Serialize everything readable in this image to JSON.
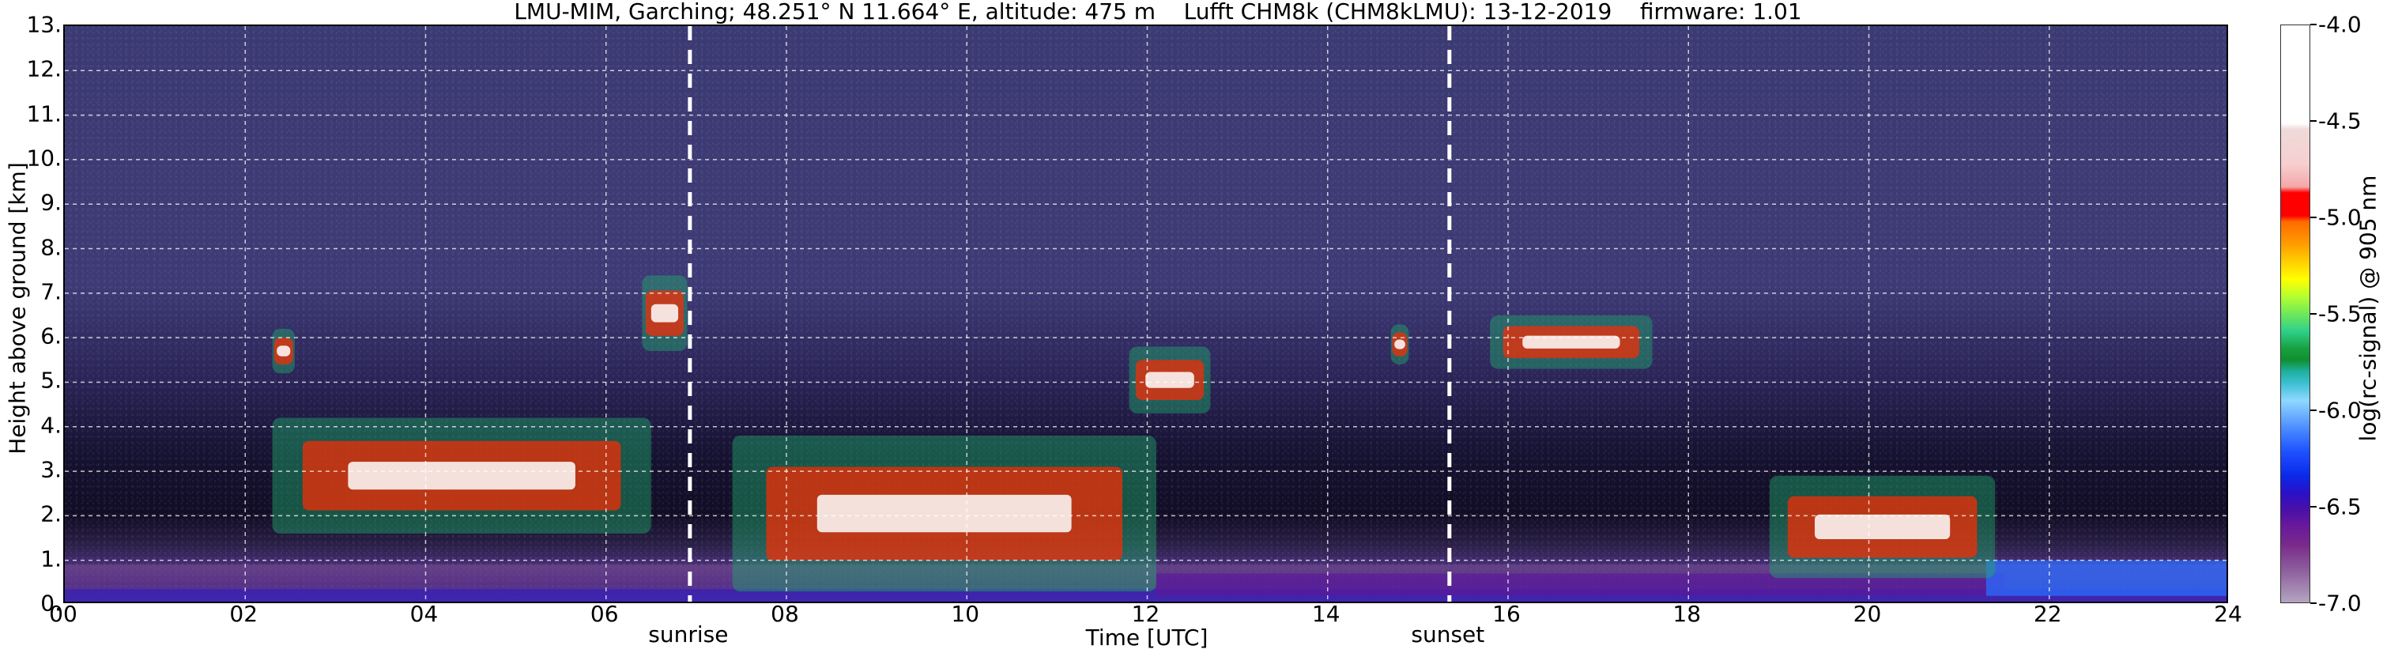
{
  "chart_data": {
    "type": "heatmap",
    "title": "LMU-MIM, Garching; 48.251° N 11.664° E, altitude: 475 m    Lufft CHM8k (CHM8kLMU): 13-12-2019    firmware: 1.01",
    "xlabel": "Time [UTC]",
    "ylabel": "Height above ground [km]",
    "xlim": [
      0,
      24
    ],
    "ylim": [
      0,
      13
    ],
    "x_ticks": [
      "00",
      "02",
      "04",
      "06",
      "08",
      "10",
      "12",
      "14",
      "16",
      "18",
      "20",
      "22",
      "24"
    ],
    "y_ticks": [
      "0.",
      "1.",
      "2.",
      "3.",
      "4.",
      "5.",
      "6.",
      "7.",
      "8.",
      "9.",
      "10.",
      "11.",
      "12.",
      "13."
    ],
    "grid": true,
    "annotations": [
      {
        "label": "sunrise",
        "x": 6.93
      },
      {
        "label": "sunset",
        "x": 15.35
      }
    ],
    "colorbar": {
      "label": "log(rc-signal) @ 905 nm",
      "range": [
        -7.0,
        -4.0
      ],
      "ticks": [
        "-4.0",
        "-4.5",
        "-5.0",
        "-5.5",
        "-6.0",
        "-6.5",
        "-7.0"
      ],
      "colors": [
        "#ffffff",
        "#f4a7a7",
        "#ff0000",
        "#ff9e00",
        "#ffff00",
        "#6fe85a",
        "#18a040",
        "#8fd8ff",
        "#3c7bff",
        "#0a2aea",
        "#4a10a8",
        "#7a2a8a",
        "#b4a4c0"
      ]
    },
    "cloud_layers": [
      {
        "x": [
          2.3,
          6.5
        ],
        "y": [
          1.6,
          4.2
        ]
      },
      {
        "x": [
          2.3,
          2.55
        ],
        "y": [
          5.2,
          6.2
        ]
      },
      {
        "x": [
          6.4,
          6.9
        ],
        "y": [
          5.7,
          7.4
        ]
      },
      {
        "x": [
          7.4,
          12.1
        ],
        "y": [
          0.3,
          3.8
        ]
      },
      {
        "x": [
          11.8,
          12.7
        ],
        "y": [
          4.3,
          5.8
        ]
      },
      {
        "x": [
          14.7,
          14.9
        ],
        "y": [
          5.4,
          6.3
        ]
      },
      {
        "x": [
          15.8,
          17.6
        ],
        "y": [
          5.3,
          6.5
        ]
      },
      {
        "x": [
          18.9,
          21.4
        ],
        "y": [
          0.6,
          2.9
        ]
      }
    ],
    "boundary_layer_top_km": 0.9
  }
}
